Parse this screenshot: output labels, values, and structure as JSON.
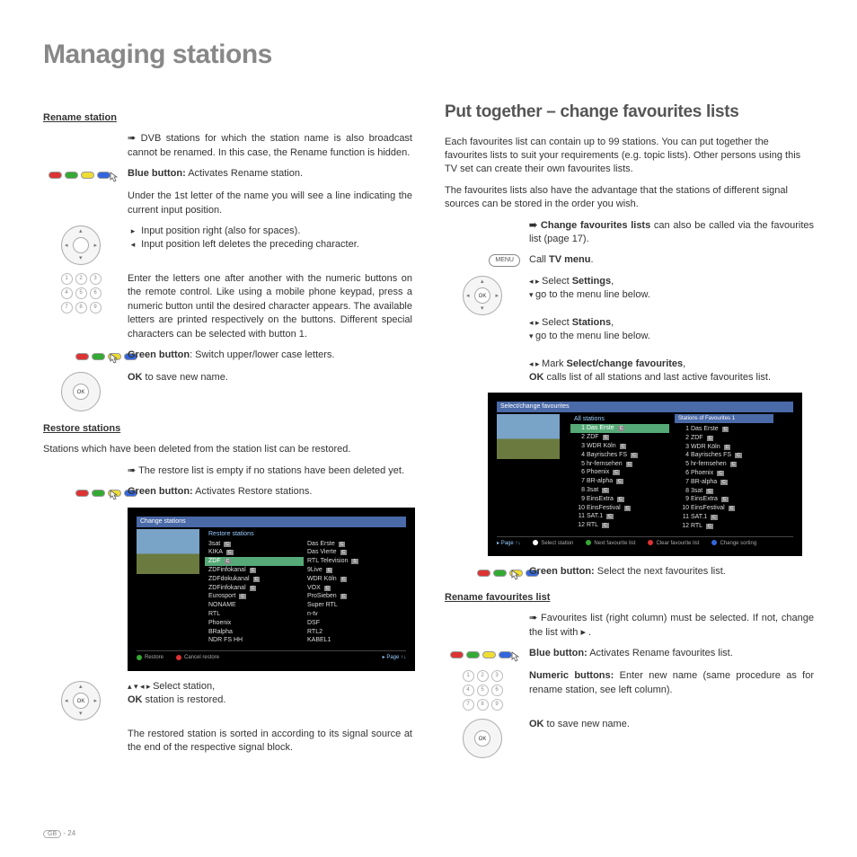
{
  "page": {
    "title": "Managing stations",
    "footer_region": "GB",
    "footer_page": "- 24"
  },
  "left": {
    "rename_hdr": "Rename station",
    "rename_note": "➠ DVB stations for which the station name is also broadcast cannot be renamed. In this case, the Rename function is hidden.",
    "blue_label": "Blue button:",
    "blue_text": " Activates Rename station.",
    "under_first": "Under the 1st letter of the name you will see a line indicating the current input position.",
    "input_right": "Input position right (also for spaces).",
    "input_left": "Input position left deletes the preceding character.",
    "enter_letters": "Enter the letters one after another with the numeric buttons on the remote control. Like using a mobile phone keypad, press a numeric button until the desired character appears. The available letters are printed respectively on the buttons. Different special characters can be selected with button 1.",
    "green_label": "Green button",
    "green_text": ": Switch upper/lower case letters.",
    "ok_save": "OK",
    "ok_save_text": " to save new name.",
    "restore_hdr": "Restore stations",
    "restore_intro": "Stations which have been deleted from the station list can be restored.",
    "restore_empty": "➠ The restore list is empty if no stations have been deleted yet.",
    "restore_green_label": "Green button:",
    "restore_green_text": " Activates Restore stations.",
    "shot1": {
      "title": "Change stations",
      "subtitle": "Restore stations",
      "col1": [
        "3sat",
        "KIKA",
        "ZDF",
        "ZDFinfokanal",
        "ZDFdokukanal",
        "ZDFinfokanal",
        "Eurosport",
        "NONAME",
        "RTL",
        "Phoenix",
        "BRalpha",
        "NDR FS HH"
      ],
      "col2": [
        "Das Erste",
        "Das Vierte",
        "RTL Television",
        "9Live",
        "WDR Köln",
        "VOX",
        "ProSieben",
        "Super RTL",
        "n-tv",
        "DSF",
        "RTL2",
        "KABEL1"
      ],
      "foot_restore": "Restore",
      "foot_cancel": "Cancel restore",
      "foot_page": "Page ↑↓"
    },
    "select_station": "Select station,",
    "ok_restored": "OK",
    "ok_restored_text": " station is restored.",
    "sorted_note": "The restored station is sorted in according to its signal source at the end of the respective signal block."
  },
  "right": {
    "title": "Put together – change favourites lists",
    "intro1": "Each favourites list can contain up to 99 stations. You can put together the favourites lists to suit your requirements (e.g. topic lists). Other persons using this TV set can create their own favourites lists.",
    "intro2": "The favourites lists also have the advantage that the stations of different signal sources can be stored in the order you wish.",
    "change_note_b": "➠ Change favourites lists",
    "change_note": " can also be called via the favourites list (page 17).",
    "menu_label": "MENU",
    "call_tv": "Call TV menu.",
    "sel_settings_b": "Settings",
    "sel_settings": "Select ",
    "goto_menu": "go to the menu line below.",
    "sel_stations_b": "Stations",
    "mark_fav_b": "Select/change favourites",
    "mark_fav": "Mark ",
    "ok_calls_b": "OK",
    "ok_calls": " calls list of all stations and last active favourites list.",
    "shot2": {
      "title": "Select/change favourites",
      "left_hdr": "All stations",
      "right_hdr": "Stations of Favourites 1",
      "items": [
        "Das Erste",
        "ZDF",
        "WDR Köln",
        "Bayrisches FS",
        "hr-fernsehen",
        "Phoenix",
        "BR-alpha",
        "3sat",
        "EinsExtra",
        "EinsFestival",
        "SAT.1",
        "RTL"
      ],
      "foot_page": "Page ↑↓",
      "foot_select": "Select station",
      "foot_clear": "Clear favourite list",
      "foot_next": "Next favourite list",
      "foot_sort": "Change sorting"
    },
    "green_next_b": "Green button:",
    "green_next": " Select the next favourites list.",
    "rename_fav_hdr": "Rename favourites list",
    "rename_fav_note": "➠ Favourites list (right column) must be selected. If not, change the list with  ▸ .",
    "blue_fav_b": "Blue button:",
    "blue_fav": " Activates Rename favourites list.",
    "numeric_b": "Numeric buttons:",
    "numeric": " Enter new name (same procedure as for rename station, see left column).",
    "ok_save2_b": "OK",
    "ok_save2": " to save new name."
  }
}
